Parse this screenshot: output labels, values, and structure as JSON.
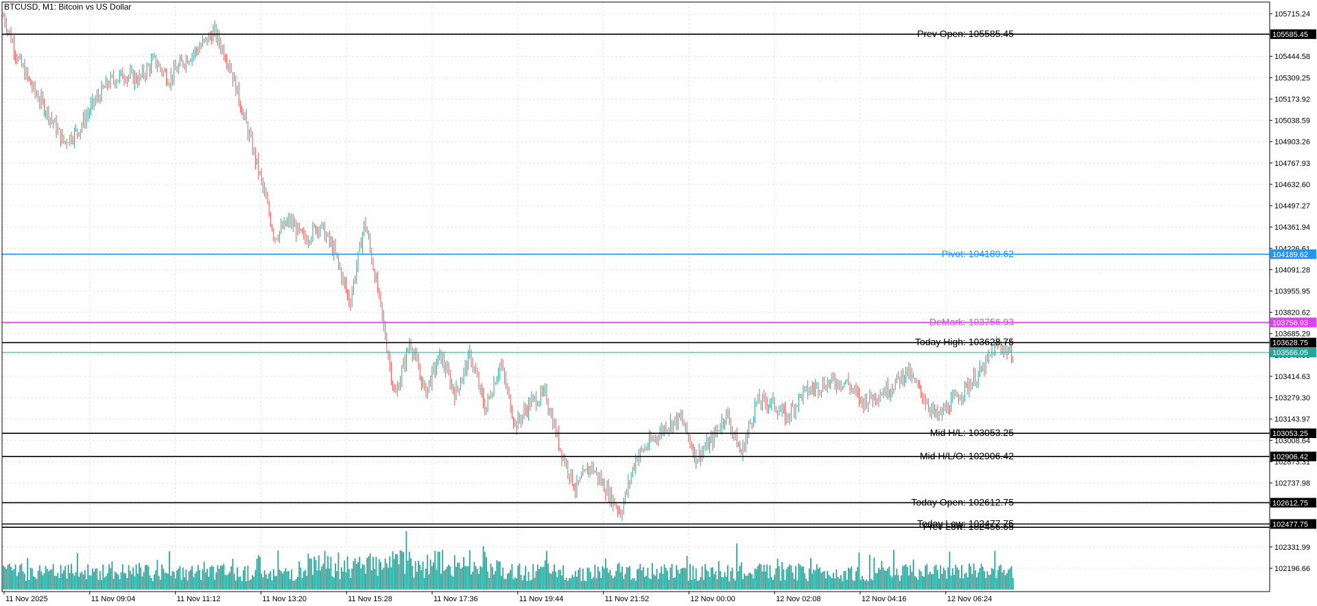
{
  "header": {
    "title": "BTCUSD, M1:  Bitcoin vs US Dollar"
  },
  "colors": {
    "background": "#ffffff",
    "grid": "#e4e4e4",
    "axis": "#000000",
    "bull": "#26a69a",
    "bear": "#ef5350",
    "volume": "#26a69a",
    "pivot": "#2196f3",
    "demark": "#e040fb",
    "level": "#000000",
    "current": "#26a69a"
  },
  "chart_data": {
    "type": "candlestick",
    "symbol": "BTCUSD",
    "timeframe": "M1",
    "title": "BTCUSD, M1:  Bitcoin vs US Dollar",
    "ylim": [
      102100,
      105780
    ],
    "grid": true,
    "y_ticks": [
      "105715.24",
      "105579.91",
      "105444.58",
      "105309.25",
      "105173.92",
      "105038.59",
      "104903.26",
      "104767.93",
      "104632.60",
      "104497.27",
      "104361.94",
      "104226.61",
      "104091.28",
      "103955.95",
      "103820.62",
      "103685.29",
      "103549.96",
      "103414.63",
      "103279.30",
      "103143.97",
      "103008.64",
      "102873.31",
      "102737.98",
      "102602.65",
      "102467.32",
      "102331.99",
      "102196.66"
    ],
    "x_ticks": [
      "11 Nov 2025",
      "11 Nov 09:04",
      "11 Nov 11:12",
      "11 Nov 13:20",
      "11 Nov 15:28",
      "11 Nov 17:36",
      "11 Nov 19:44",
      "11 Nov 21:52",
      "12 Nov 00:00",
      "12 Nov 02:08",
      "12 Nov 04:16",
      "12 Nov 06:24"
    ],
    "levels": [
      {
        "label": "Prev Open: 105585.45",
        "value": 105585.45,
        "tag": "105585.45",
        "color": "#000000"
      },
      {
        "label": "Pivot: 104189.62",
        "value": 104189.62,
        "tag": "104189.62",
        "color": "#2196f3"
      },
      {
        "label": "DeMark: 103756.93",
        "value": 103756.93,
        "tag": "103756.93",
        "color": "#e040fb"
      },
      {
        "label": "Today High: 103628.75",
        "value": 103628.75,
        "tag": "103628.75",
        "color": "#000000"
      },
      {
        "label": "Mid H/L: 103053.25",
        "value": 103053.25,
        "tag": "103053.25",
        "color": "#000000"
      },
      {
        "label": "Mid H/L/O: 102906.42",
        "value": 102906.42,
        "tag": "102906.42",
        "color": "#000000"
      },
      {
        "label": "Today Open: 102612.75",
        "value": 102612.75,
        "tag": "102612.75",
        "color": "#000000"
      },
      {
        "label": "Today Low: 102477.75",
        "value": 102477.75,
        "tag": "102477.75",
        "color": "#000000"
      },
      {
        "label": "Prev Low: 102456.65",
        "value": 102456.65,
        "tag": "",
        "color": "#000000"
      }
    ],
    "current_price": {
      "value": 103566.05,
      "tag": "103566.05"
    },
    "price_path": [
      105700,
      105420,
      105230,
      105080,
      104900,
      104980,
      105150,
      105280,
      105330,
      105300,
      105420,
      105300,
      105420,
      105500,
      105600,
      105400,
      105050,
      104700,
      104300,
      104400,
      104280,
      104380,
      104200,
      103880,
      104400,
      103880,
      103280,
      103640,
      103310,
      103550,
      103300,
      103550,
      103200,
      103500,
      103100,
      103250,
      103300,
      102950,
      102700,
      102850,
      102700,
      102550,
      102900,
      103000,
      103100,
      103150,
      102900,
      103000,
      103180,
      102920,
      103250,
      103250,
      103150,
      103300,
      103350,
      103380,
      103380,
      103250,
      103300,
      103350,
      103450,
      103300,
      103150,
      103250,
      103350,
      103450,
      103620,
      103560
    ]
  }
}
